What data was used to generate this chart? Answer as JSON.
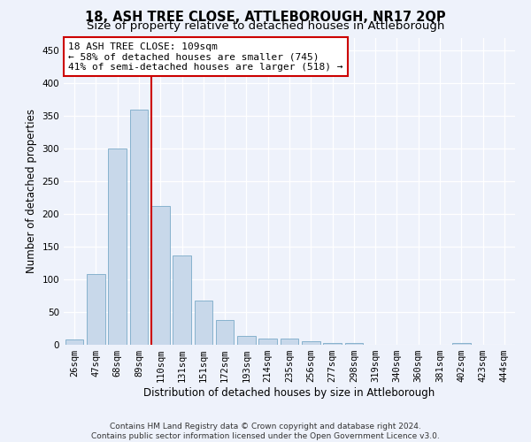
{
  "title": "18, ASH TREE CLOSE, ATTLEBOROUGH, NR17 2QP",
  "subtitle": "Size of property relative to detached houses in Attleborough",
  "xlabel": "Distribution of detached houses by size in Attleborough",
  "ylabel": "Number of detached properties",
  "categories": [
    "26sqm",
    "47sqm",
    "68sqm",
    "89sqm",
    "110sqm",
    "131sqm",
    "151sqm",
    "172sqm",
    "193sqm",
    "214sqm",
    "235sqm",
    "256sqm",
    "277sqm",
    "298sqm",
    "319sqm",
    "340sqm",
    "360sqm",
    "381sqm",
    "402sqm",
    "423sqm",
    "444sqm"
  ],
  "values": [
    8,
    108,
    300,
    360,
    212,
    137,
    68,
    38,
    13,
    10,
    9,
    6,
    3,
    3,
    0,
    0,
    0,
    0,
    3,
    0,
    0
  ],
  "bar_color": "#c8d8ea",
  "bar_edge_color": "#7aaac8",
  "property_line_index": 4,
  "annotation_line1": "18 ASH TREE CLOSE: 109sqm",
  "annotation_line2": "← 58% of detached houses are smaller (745)",
  "annotation_line3": "41% of semi-detached houses are larger (518) →",
  "annotation_box_color": "#ffffff",
  "annotation_box_edge_color": "#cc0000",
  "red_line_color": "#cc0000",
  "ylim": [
    0,
    470
  ],
  "yticks": [
    0,
    50,
    100,
    150,
    200,
    250,
    300,
    350,
    400,
    450
  ],
  "footer_line1": "Contains HM Land Registry data © Crown copyright and database right 2024.",
  "footer_line2": "Contains public sector information licensed under the Open Government Licence v3.0.",
  "background_color": "#eef2fb",
  "plot_background_color": "#eef2fb",
  "title_fontsize": 10.5,
  "subtitle_fontsize": 9.5,
  "tick_fontsize": 7.5,
  "ylabel_fontsize": 8.5,
  "xlabel_fontsize": 8.5,
  "footer_fontsize": 6.5,
  "annotation_fontsize": 8
}
